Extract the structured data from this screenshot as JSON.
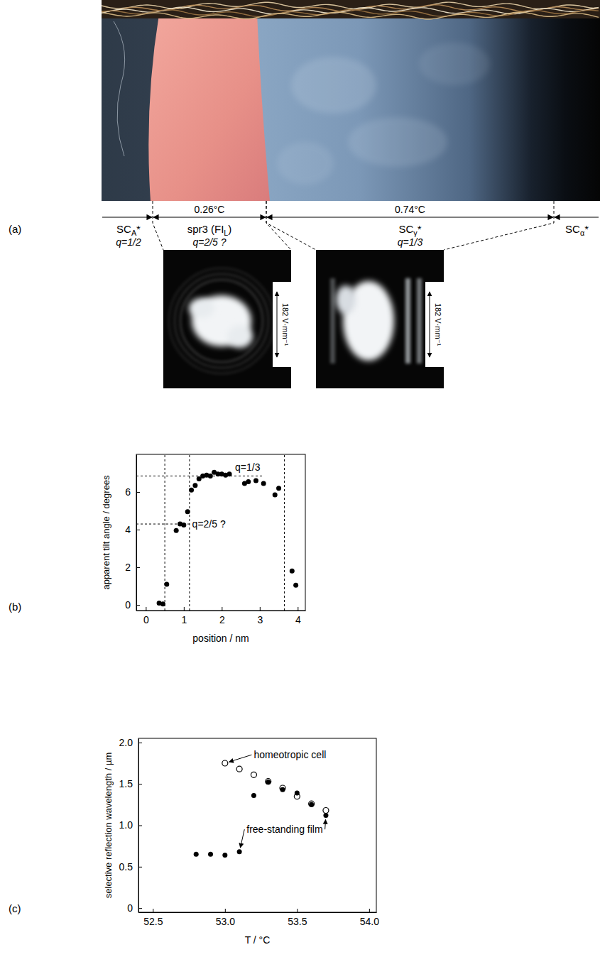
{
  "panel_a": {
    "label": "(a)",
    "phases": [
      {
        "name": [
          {
            "text": "SC"
          },
          {
            "text": "A",
            "sub": true
          },
          {
            "text": "*"
          }
        ],
        "q": "q=1/2"
      },
      {
        "name": [
          {
            "text": "spr3 (FI"
          },
          {
            "text": "L",
            "sub": true
          },
          {
            "text": ")"
          }
        ],
        "q": "q=2/5 ?"
      },
      {
        "name": [
          {
            "text": "SC"
          },
          {
            "text": "γ",
            "sub": true
          },
          {
            "text": "*"
          }
        ],
        "q": "q=1/3"
      },
      {
        "name": [
          {
            "text": "SC"
          },
          {
            "text": "α",
            "sub": true
          },
          {
            "text": "*"
          }
        ]
      }
    ],
    "ranges": [
      "0.26°C",
      "0.74°C"
    ],
    "images": [
      {
        "scale_label": "182 V·mm⁻¹"
      },
      {
        "scale_label": "182 V·mm⁻¹"
      }
    ]
  },
  "chart_data": [
    {
      "type": "scatter",
      "title": "(b)",
      "x_label": "position / nm",
      "y_label": "apparent tilt angle / degrees",
      "xlim": [
        -0.25,
        4.2
      ],
      "xticks": [
        0,
        1,
        2,
        3,
        4
      ],
      "ylim": [
        -0.3,
        8
      ],
      "yticks": [
        0,
        2,
        4,
        6
      ],
      "x": [
        0.35,
        0.45,
        0.55,
        0.8,
        0.9,
        1.0,
        1.1,
        1.2,
        1.3,
        1.4,
        1.5,
        1.6,
        1.7,
        1.8,
        1.9,
        2.0,
        2.1,
        2.2,
        2.6,
        2.7,
        2.9,
        3.1,
        3.4,
        3.5,
        3.85,
        3.95
      ],
      "series": [
        {
          "color": "#000000",
          "marker": "circle",
          "values": [
            0.1,
            0.05,
            1.1,
            3.95,
            4.3,
            4.25,
            4.95,
            6.1,
            6.35,
            6.7,
            6.85,
            6.9,
            6.85,
            7.05,
            6.95,
            6.95,
            6.9,
            6.95,
            6.45,
            6.55,
            6.6,
            6.45,
            5.85,
            6.2,
            1.8,
            1.05
          ]
        }
      ],
      "reference_lines": [
        {
          "x": 0.5
        },
        {
          "x": 1.15
        },
        {
          "x": 3.65
        },
        {
          "y": 6.85,
          "x_range": [
            -0.25,
            3.1
          ]
        },
        {
          "y": 4.3,
          "x_range": [
            -0.25,
            1.15
          ]
        }
      ],
      "annotations": [
        {
          "text": "q=1/3",
          "x": 2.35,
          "y": 7.3
        },
        {
          "text": "q=2/5 ?",
          "x": 1.22,
          "y": 4.3
        }
      ]
    },
    {
      "type": "scatter",
      "title": "(c)",
      "x_label": "T / °C",
      "y_label": "selective reflection wavelength / µm",
      "xlim": [
        52.4,
        54.05
      ],
      "xticks": [
        52.5,
        {
          "value": 53,
          "label": "53.0"
        },
        53.5,
        {
          "value": 54,
          "label": "54.0"
        }
      ],
      "ylim": [
        -0.05,
        2.05
      ],
      "yticks": [
        0,
        0.5,
        {
          "value": 1,
          "label": "1.0"
        },
        1.5,
        {
          "value": 2,
          "label": "2.0"
        }
      ],
      "series": [
        {
          "color": "#000000",
          "marker": "open_circle",
          "x": [
            53.0,
            53.1,
            53.2,
            53.3,
            53.4,
            53.5,
            53.6,
            53.7
          ],
          "values": [
            1.75,
            1.68,
            1.61,
            1.53,
            1.45,
            1.35,
            1.26,
            1.18
          ]
        },
        {
          "color": "#000000",
          "marker": "circle",
          "x": [
            52.8,
            52.9,
            53.0,
            53.1,
            53.2,
            53.3,
            53.4,
            53.5,
            53.6,
            53.7
          ],
          "values": [
            0.65,
            0.65,
            0.64,
            0.68,
            1.36,
            1.52,
            1.43,
            1.39,
            1.25,
            1.12
          ]
        }
      ],
      "annotations": [
        {
          "text": "homeotropic cell",
          "x": 53.2,
          "y": 1.85,
          "arrows": [
            [
              53.0,
              1.75
            ]
          ]
        },
        {
          "text": "free-standing film",
          "x": 53.15,
          "y": 0.95,
          "arrows": [
            [
              53.1,
              0.68
            ],
            [
              53.7,
              1.12
            ]
          ]
        }
      ]
    }
  ]
}
